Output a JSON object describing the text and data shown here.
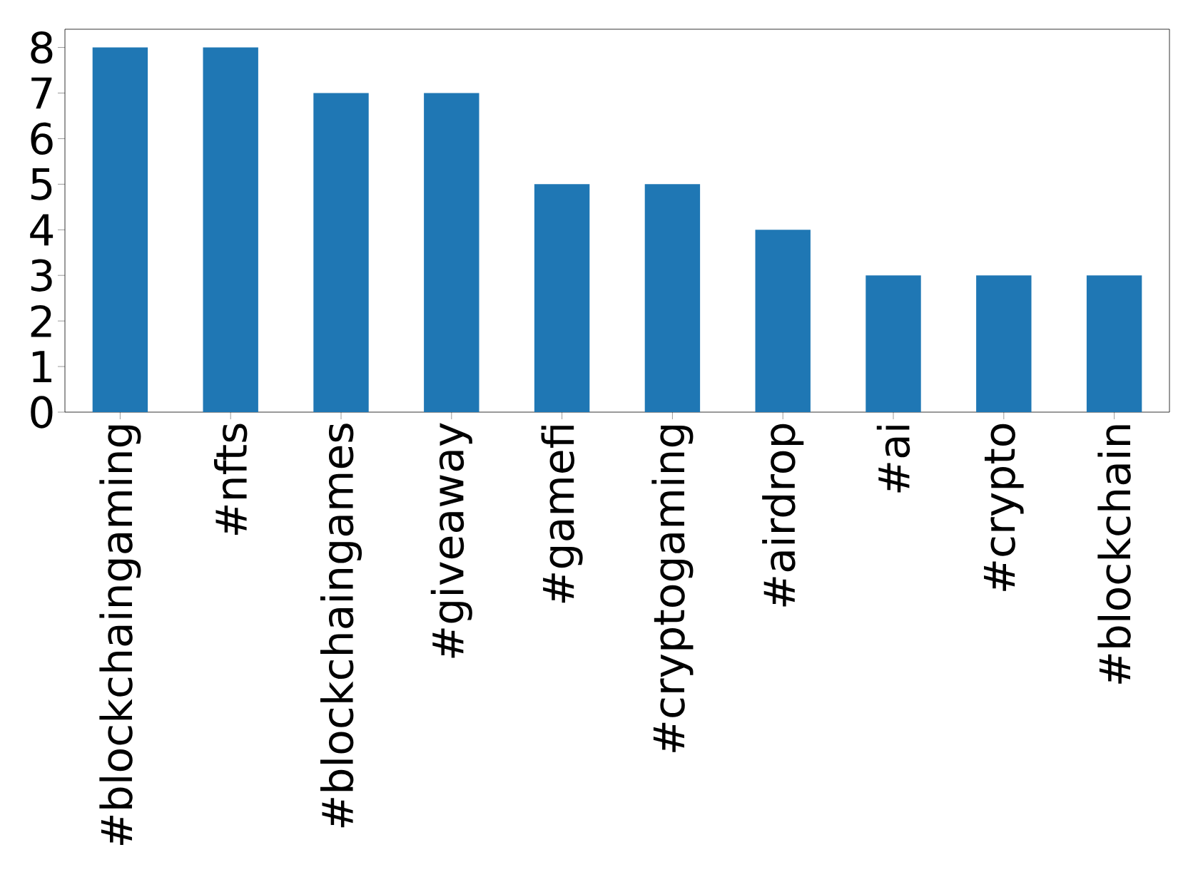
{
  "chart_data": {
    "type": "bar",
    "categories": [
      "#blockchaingaming",
      "#nfts",
      "#blockchaingames",
      "#giveaway",
      "#gamefi",
      "#cryptogaming",
      "#airdrop",
      "#ai",
      "#crypto",
      "#blockchain"
    ],
    "values": [
      8,
      8,
      7,
      7,
      5,
      5,
      4,
      3,
      3,
      3
    ],
    "color": "#1f77b4",
    "ylim": [
      0,
      8.4
    ],
    "yticks": [
      0,
      1,
      2,
      3,
      4,
      5,
      6,
      7,
      8
    ]
  }
}
